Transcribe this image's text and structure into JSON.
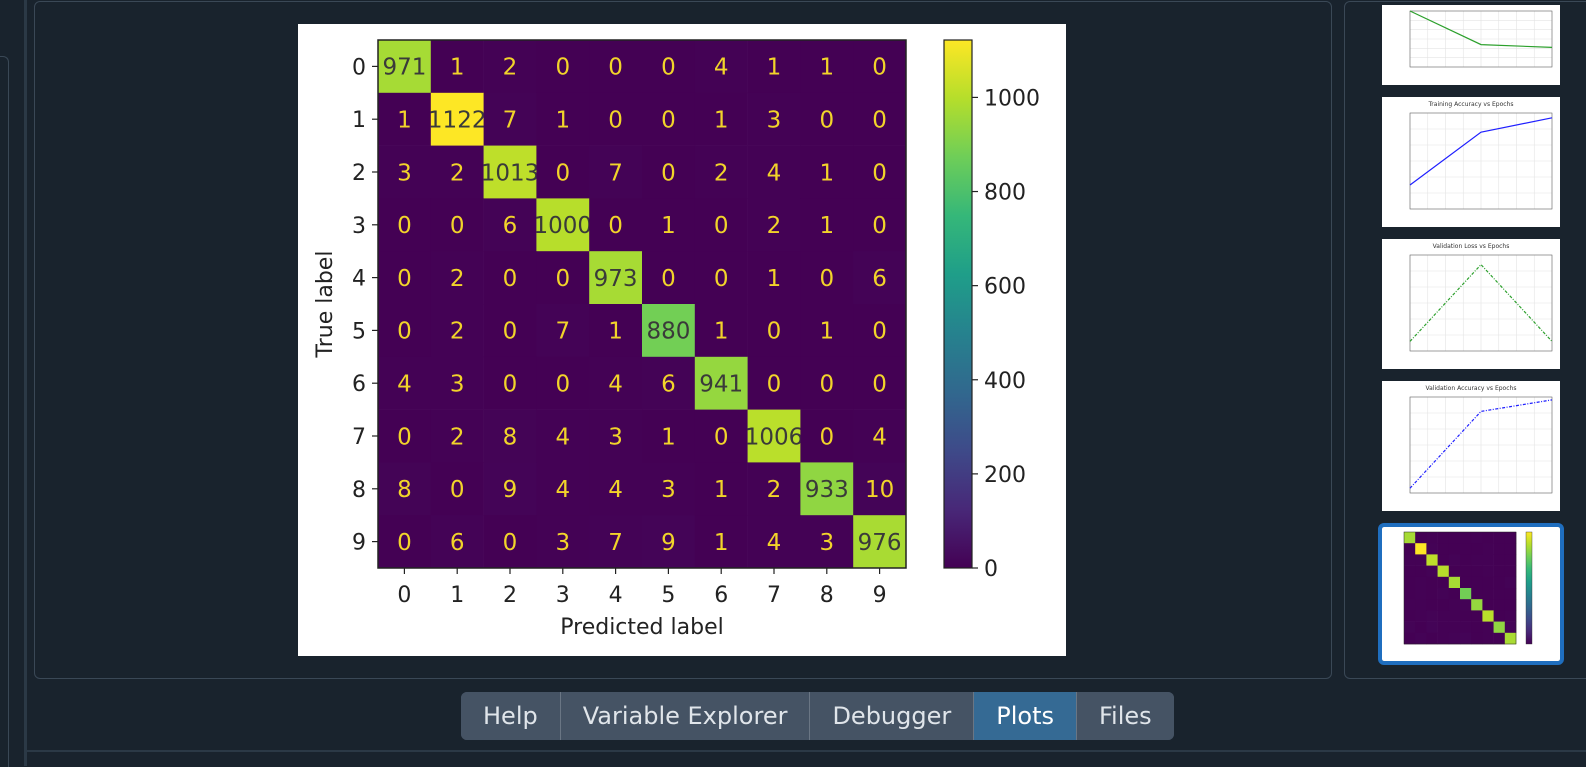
{
  "tabs": [
    {
      "label": "Help",
      "active": false
    },
    {
      "label": "Variable Explorer",
      "active": false
    },
    {
      "label": "Debugger",
      "active": false
    },
    {
      "label": "Plots",
      "active": true
    },
    {
      "label": "Files",
      "active": false
    }
  ],
  "colors": {
    "background": "#19232d",
    "tab_active": "#356a94",
    "tab_inactive": "#455364",
    "thumbnail_selected": "#1f6ebf"
  },
  "chart_data": {
    "type": "heatmap",
    "title": "",
    "xlabel": "Predicted label",
    "ylabel": "True label",
    "x_categories": [
      "0",
      "1",
      "2",
      "3",
      "4",
      "5",
      "6",
      "7",
      "8",
      "9"
    ],
    "y_categories": [
      "0",
      "1",
      "2",
      "3",
      "4",
      "5",
      "6",
      "7",
      "8",
      "9"
    ],
    "matrix": [
      [
        971,
        1,
        2,
        0,
        0,
        0,
        4,
        1,
        1,
        0
      ],
      [
        1,
        1122,
        7,
        1,
        0,
        0,
        1,
        3,
        0,
        0
      ],
      [
        3,
        2,
        1013,
        0,
        7,
        0,
        2,
        4,
        1,
        0
      ],
      [
        0,
        0,
        6,
        1000,
        0,
        1,
        0,
        2,
        1,
        0
      ],
      [
        0,
        2,
        0,
        0,
        973,
        0,
        0,
        1,
        0,
        6
      ],
      [
        0,
        2,
        0,
        7,
        1,
        880,
        1,
        0,
        1,
        0
      ],
      [
        4,
        3,
        0,
        0,
        4,
        6,
        941,
        0,
        0,
        0
      ],
      [
        0,
        2,
        8,
        4,
        3,
        1,
        0,
        1006,
        0,
        4
      ],
      [
        8,
        0,
        9,
        4,
        4,
        3,
        1,
        2,
        933,
        10
      ],
      [
        0,
        6,
        0,
        3,
        7,
        9,
        1,
        4,
        3,
        976
      ]
    ],
    "colorbar": {
      "min": 0,
      "max": 1122,
      "ticks": [
        0,
        200,
        400,
        600,
        800,
        1000
      ],
      "colormap": "viridis"
    }
  },
  "thumbnails": [
    {
      "title": "",
      "color": "#2ca02c",
      "style": "solid",
      "points": [
        [
          0.0,
          1.0
        ],
        [
          0.5,
          0.4
        ],
        [
          1.0,
          0.35
        ]
      ]
    },
    {
      "title": "Training Accuracy vs Epochs",
      "color": "#1f1fff",
      "style": "solid",
      "points": [
        [
          0.0,
          0.25
        ],
        [
          0.5,
          0.8
        ],
        [
          1.0,
          0.95
        ]
      ]
    },
    {
      "title": "Validation Loss vs Epochs",
      "color": "#2ca02c",
      "style": "dashdot",
      "points": [
        [
          0.0,
          0.1
        ],
        [
          0.5,
          0.9
        ],
        [
          1.0,
          0.1
        ]
      ]
    },
    {
      "title": "Validation Accuracy vs Epochs",
      "color": "#1f1fff",
      "style": "dashdot",
      "points": [
        [
          0.0,
          0.05
        ],
        [
          0.5,
          0.85
        ],
        [
          1.0,
          0.97
        ]
      ]
    },
    {
      "title": "",
      "type": "confusion-matrix",
      "selected": true
    }
  ]
}
